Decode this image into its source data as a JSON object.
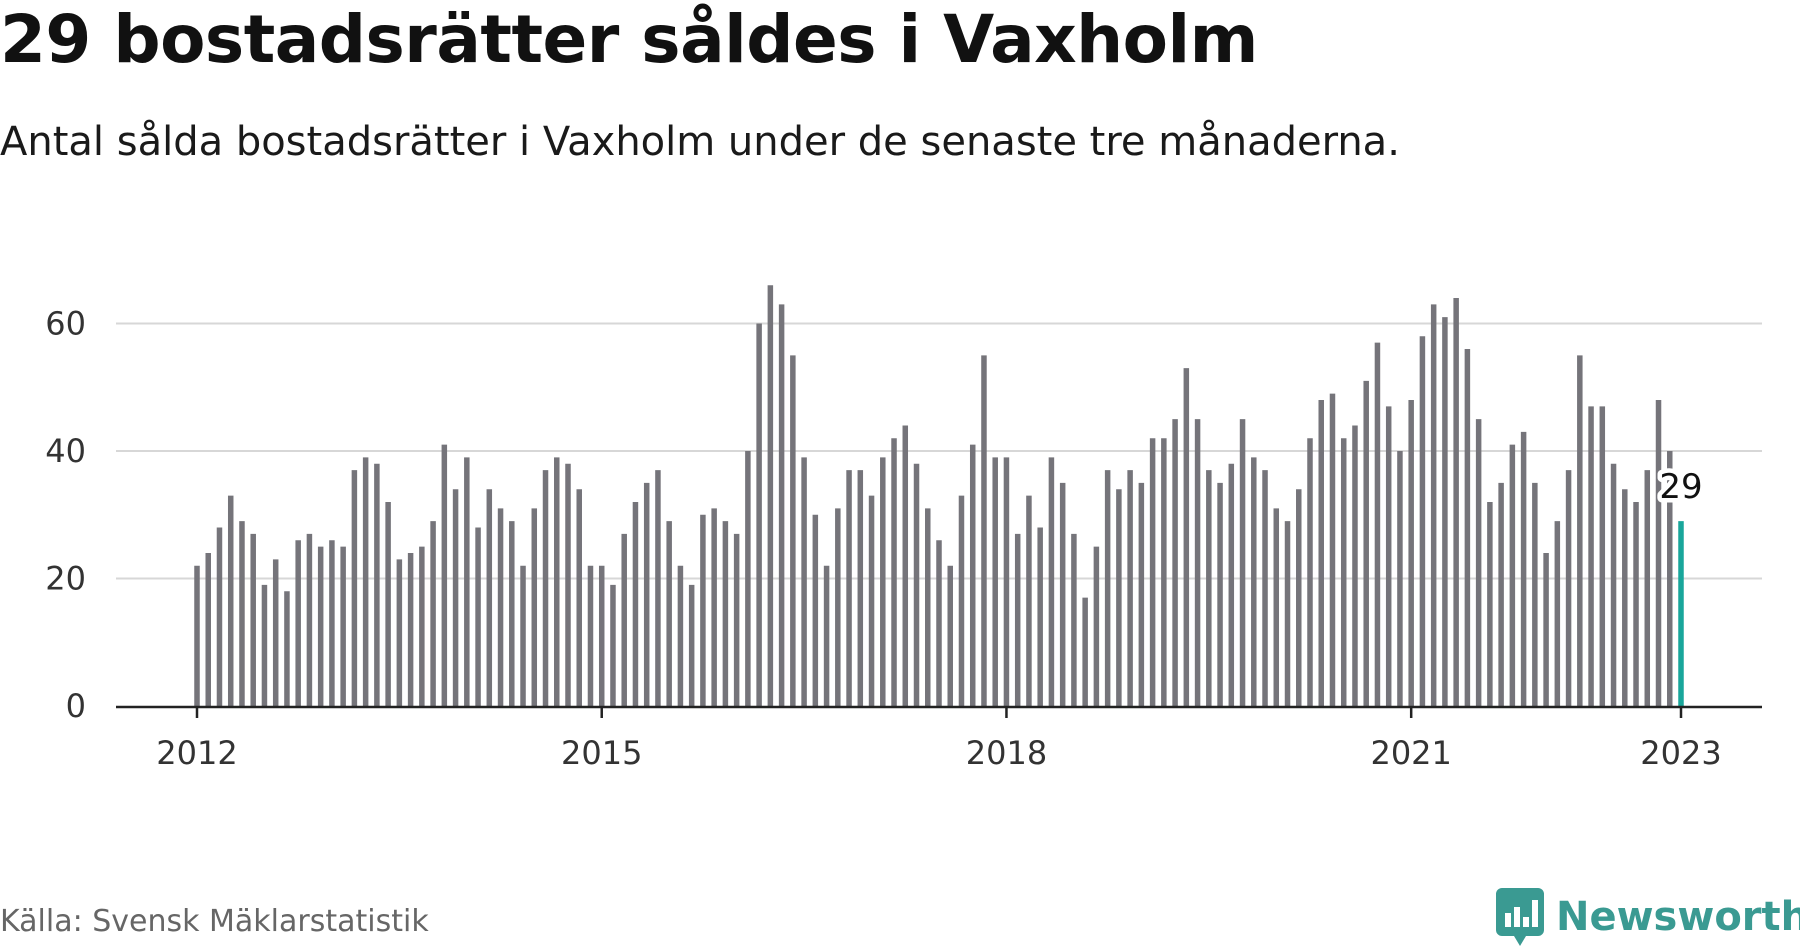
{
  "title": "29 bostadsrätter såldes i Vaxholm",
  "subtitle": "Antal sålda bostadsrätter i Vaxholm under de senaste tre månaderna.",
  "source": "Källa: Svensk Mäklarstatistik",
  "brand": {
    "name": "Newsworthy",
    "icon": "bar-chart-speech-bubble-icon",
    "color": "#3a9a92"
  },
  "colors": {
    "bar": "#75747a",
    "highlight": "#19a69b",
    "grid": "#d7d7d7",
    "axis": "#222222"
  },
  "chart_data": {
    "type": "bar",
    "title": "29 bostadsrätter såldes i Vaxholm",
    "xlabel": "",
    "ylabel": "",
    "x_tick_labels": [
      "2012",
      "2015",
      "2018",
      "2021",
      "2023"
    ],
    "y_tick_labels": [
      "0",
      "20",
      "40",
      "60"
    ],
    "ylim": [
      0,
      70
    ],
    "grid": true,
    "highlight_label": "29",
    "values": [
      22,
      24,
      28,
      33,
      29,
      27,
      19,
      23,
      18,
      26,
      27,
      25,
      26,
      25,
      37,
      39,
      38,
      32,
      23,
      24,
      25,
      29,
      41,
      34,
      39,
      28,
      34,
      31,
      29,
      22,
      31,
      37,
      39,
      38,
      34,
      22,
      22,
      19,
      27,
      32,
      35,
      37,
      29,
      22,
      19,
      30,
      31,
      29,
      27,
      40,
      60,
      66,
      63,
      55,
      39,
      30,
      22,
      31,
      37,
      37,
      33,
      39,
      42,
      44,
      38,
      31,
      26,
      22,
      33,
      41,
      55,
      39,
      39,
      27,
      33,
      28,
      39,
      35,
      27,
      17,
      25,
      37,
      34,
      37,
      35,
      42,
      42,
      45,
      53,
      45,
      37,
      35,
      38,
      45,
      39,
      37,
      31,
      29,
      34,
      42,
      48,
      49,
      42,
      44,
      51,
      57,
      47,
      40,
      48,
      58,
      63,
      61,
      64,
      56,
      45,
      32,
      35,
      41,
      43,
      35,
      24,
      29,
      37,
      55,
      47,
      47,
      38,
      34,
      32,
      37,
      48,
      40,
      29
    ]
  }
}
